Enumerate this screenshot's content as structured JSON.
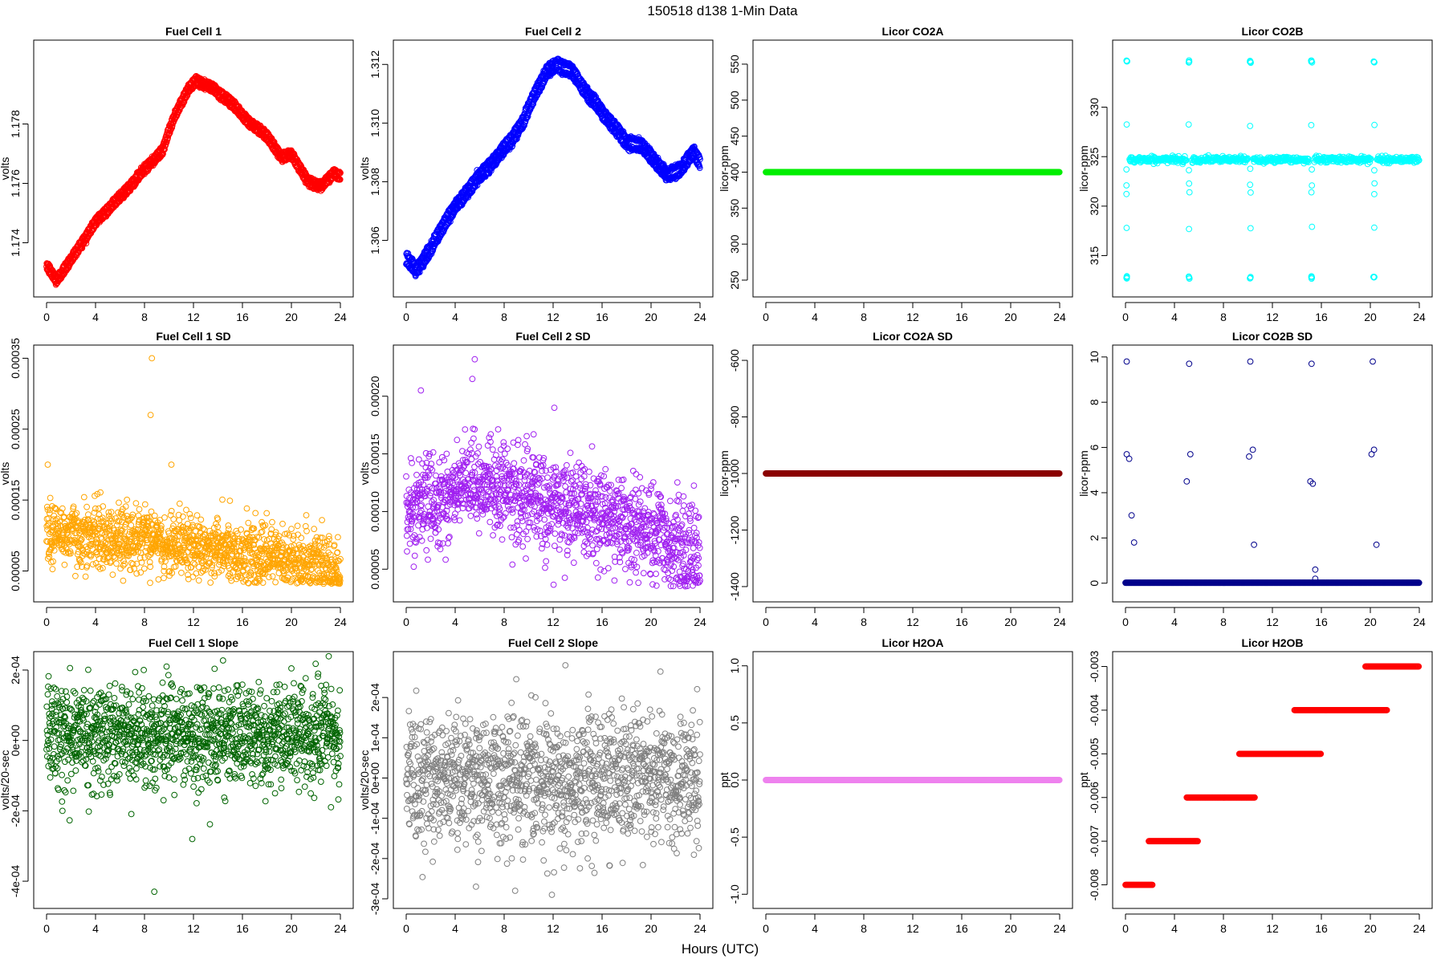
{
  "figure": {
    "title": "150518   d138   1-Min Data",
    "xlabel": "Hours (UTC)"
  },
  "chart_data": [
    {
      "type": "scatter",
      "title": "Fuel Cell 1",
      "xlabel": "",
      "ylabel": "volts",
      "color": "#ff0000",
      "xlim": [
        0,
        24
      ],
      "ylim": [
        1.1725,
        1.1805
      ],
      "xticks": [
        0,
        4,
        8,
        12,
        16,
        20,
        24
      ],
      "xtick_labels": [
        "0",
        "4",
        "8",
        "12",
        "16",
        "20",
        "24"
      ],
      "yticks": [
        1.174,
        1.176,
        1.178
      ],
      "ytick_labels": [
        "1.174",
        "1.176",
        "1.178"
      ],
      "gen": {
        "kind": "band",
        "n": 1440,
        "anchors": [
          [
            0,
            1.1731
          ],
          [
            0.8,
            1.1726
          ],
          [
            2,
            1.1733
          ],
          [
            3,
            1.174
          ],
          [
            4,
            1.1746
          ],
          [
            6,
            1.1754
          ],
          [
            8,
            1.1764
          ],
          [
            9.5,
            1.177
          ],
          [
            10.5,
            1.1782
          ],
          [
            11.5,
            1.179
          ],
          [
            12.2,
            1.1794
          ],
          [
            13.5,
            1.1791
          ],
          [
            15,
            1.1786
          ],
          [
            16.5,
            1.178
          ],
          [
            18,
            1.1775
          ],
          [
            19.2,
            1.1767
          ],
          [
            20,
            1.1769
          ],
          [
            21.3,
            1.176
          ],
          [
            22.5,
            1.1758
          ],
          [
            23.5,
            1.1762
          ],
          [
            24,
            1.1761
          ]
        ],
        "offset": 0.00022,
        "noise": 8e-05
      }
    },
    {
      "type": "scatter",
      "title": "Fuel Cell 2",
      "xlabel": "",
      "ylabel": "volts",
      "color": "#0000ff",
      "xlim": [
        0,
        24
      ],
      "ylim": [
        1.3044,
        1.3125
      ],
      "xticks": [
        0,
        4,
        8,
        12,
        16,
        20,
        24
      ],
      "xtick_labels": [
        "0",
        "4",
        "8",
        "12",
        "16",
        "20",
        "24"
      ],
      "yticks": [
        1.306,
        1.308,
        1.31,
        1.312
      ],
      "ytick_labels": [
        "1.306",
        "1.308",
        "1.310",
        "1.312"
      ],
      "gen": {
        "kind": "band",
        "n": 1440,
        "anchors": [
          [
            0,
            1.3052
          ],
          [
            0.8,
            1.3048
          ],
          [
            2,
            1.3055
          ],
          [
            3,
            1.3064
          ],
          [
            4,
            1.307
          ],
          [
            6,
            1.308
          ],
          [
            8,
            1.309
          ],
          [
            9.5,
            1.3098
          ],
          [
            10.5,
            1.3108
          ],
          [
            11.5,
            1.3116
          ],
          [
            12.3,
            1.3119
          ],
          [
            13.5,
            1.3116
          ],
          [
            15,
            1.3107
          ],
          [
            16.5,
            1.31
          ],
          [
            18,
            1.3092
          ],
          [
            19.3,
            1.309
          ],
          [
            20,
            1.3087
          ],
          [
            21.3,
            1.3081
          ],
          [
            22.5,
            1.3083
          ],
          [
            23.5,
            1.3088
          ],
          [
            24,
            1.3085
          ]
        ],
        "offset": 0.00032,
        "noise": 0.0001
      }
    },
    {
      "type": "scatter",
      "title": "Licor CO2A",
      "xlabel": "",
      "ylabel": "licor-ppm",
      "color": "#00ee00",
      "xlim": [
        0,
        24
      ],
      "ylim": [
        240,
        570
      ],
      "xticks": [
        0,
        4,
        8,
        12,
        16,
        20,
        24
      ],
      "xtick_labels": [
        "0",
        "4",
        "8",
        "12",
        "16",
        "20",
        "24"
      ],
      "yticks": [
        250,
        300,
        350,
        400,
        450,
        500,
        550
      ],
      "ytick_labels": [
        "250",
        "300",
        "350",
        "400",
        "450",
        "500",
        "550"
      ],
      "gen": {
        "kind": "const",
        "n": 1440,
        "value": 400
      }
    },
    {
      "type": "scatter",
      "title": "Licor CO2B",
      "xlabel": "",
      "ylabel": "licor-ppm",
      "color": "#00ffff",
      "xlim": [
        0,
        24
      ],
      "ylim": [
        311.8,
        335.8
      ],
      "xticks": [
        0,
        4,
        8,
        12,
        16,
        20,
        24
      ],
      "xtick_labels": [
        "0",
        "4",
        "8",
        "12",
        "16",
        "20",
        "24"
      ],
      "yticks": [
        315,
        320,
        325,
        330
      ],
      "ytick_labels": [
        "315",
        "320",
        "325",
        "330"
      ],
      "gen": {
        "kind": "co2b",
        "n": 1440,
        "base": 324.7,
        "noise": 0.15,
        "calibrations": [
          0.1,
          5.2,
          10.2,
          15.2,
          20.3
        ],
        "cal_values": [
          334.6,
          312.8,
          322.2,
          321.3,
          317.8,
          328.2,
          323.7
        ]
      }
    },
    {
      "type": "scatter",
      "title": "Fuel Cell 1 SD",
      "xlabel": "",
      "ylabel": "volts",
      "color": "#ffa500",
      "xlim": [
        0,
        24
      ],
      "ylim": [
        2e-05,
        0.000355
      ],
      "xticks": [
        0,
        4,
        8,
        12,
        16,
        20,
        24
      ],
      "xtick_labels": [
        "0",
        "4",
        "8",
        "12",
        "16",
        "20",
        "24"
      ],
      "yticks": [
        5e-05,
        0.00015,
        0.00025,
        0.00035
      ],
      "ytick_labels": [
        "0.00005",
        "0.00015",
        "0.00025",
        "0.00035"
      ],
      "gen": {
        "kind": "noise",
        "n": 1440,
        "anchors": [
          [
            0,
            0.000105
          ],
          [
            6,
            9.5e-05
          ],
          [
            12,
            8.5e-05
          ],
          [
            18,
            7e-05
          ],
          [
            24,
            5e-05
          ]
        ],
        "noise": 2.2e-05,
        "floor": 3.2e-05,
        "extras": [
          [
            8.6,
            0.00035
          ],
          [
            8.5,
            0.00027
          ],
          [
            10.2,
            0.0002
          ],
          [
            0.1,
            0.0002
          ]
        ]
      }
    },
    {
      "type": "scatter",
      "title": "Fuel Cell 2 SD",
      "xlabel": "",
      "ylabel": "volts",
      "color": "#a020f0",
      "xlim": [
        0,
        24
      ],
      "ylim": [
        3e-05,
        0.000236
      ],
      "xticks": [
        0,
        4,
        8,
        12,
        16,
        20,
        24
      ],
      "xtick_labels": [
        "0",
        "4",
        "8",
        "12",
        "16",
        "20",
        "24"
      ],
      "yticks": [
        5e-05,
        0.0001,
        0.00015,
        0.0002
      ],
      "ytick_labels": [
        "0.00005",
        "0.00010",
        "0.00015",
        "0.00020"
      ],
      "gen": {
        "kind": "noise",
        "n": 1440,
        "anchors": [
          [
            0,
            0.0001
          ],
          [
            6,
            0.000125
          ],
          [
            12,
            0.000105
          ],
          [
            18,
            9e-05
          ],
          [
            24,
            6e-05
          ]
        ],
        "noise": 2e-05,
        "floor": 3.5e-05,
        "extras": [
          [
            5.6,
            0.000232
          ],
          [
            5.4,
            0.000215
          ],
          [
            1.2,
            0.000205
          ],
          [
            12.1,
            0.00019
          ]
        ]
      }
    },
    {
      "type": "scatter",
      "title": "Licor CO2A SD",
      "xlabel": "",
      "ylabel": "licor-ppm",
      "color": "#8b0000",
      "xlim": [
        0,
        24
      ],
      "ylim": [
        -1420,
        -580
      ],
      "xticks": [
        0,
        4,
        8,
        12,
        16,
        20,
        24
      ],
      "xtick_labels": [
        "0",
        "4",
        "8",
        "12",
        "16",
        "20",
        "24"
      ],
      "yticks": [
        -1400,
        -1200,
        -1000,
        -800,
        -600
      ],
      "ytick_labels": [
        "-1400",
        "-1200",
        "-1000",
        "-800",
        "-600"
      ],
      "gen": {
        "kind": "const",
        "n": 1440,
        "value": -1000
      }
    },
    {
      "type": "scatter",
      "title": "Licor CO2B SD",
      "xlabel": "",
      "ylabel": "licor-ppm",
      "color": "#00008b",
      "xlim": [
        0,
        24
      ],
      "ylim": [
        -0.4,
        10.1
      ],
      "xticks": [
        0,
        4,
        8,
        12,
        16,
        20,
        24
      ],
      "xtick_labels": [
        "0",
        "4",
        "8",
        "12",
        "16",
        "20",
        "24"
      ],
      "yticks": [
        0,
        2,
        4,
        6,
        8,
        10
      ],
      "ytick_labels": [
        "0",
        "2",
        "4",
        "6",
        "8",
        "10"
      ],
      "gen": {
        "kind": "const",
        "n": 1440,
        "value": 0.02,
        "extras": [
          [
            0.1,
            9.8
          ],
          [
            0.1,
            5.7
          ],
          [
            0.3,
            5.5
          ],
          [
            0.5,
            3.0
          ],
          [
            0.7,
            1.8
          ],
          [
            5.2,
            9.7
          ],
          [
            5.3,
            5.7
          ],
          [
            5.0,
            4.5
          ],
          [
            10.2,
            9.8
          ],
          [
            10.1,
            5.6
          ],
          [
            10.4,
            5.9
          ],
          [
            10.5,
            1.7
          ],
          [
            15.2,
            9.7
          ],
          [
            15.1,
            4.5
          ],
          [
            15.3,
            4.4
          ],
          [
            15.5,
            0.6
          ],
          [
            15.5,
            0.2
          ],
          [
            20.2,
            9.8
          ],
          [
            20.1,
            5.7
          ],
          [
            20.3,
            5.9
          ],
          [
            20.5,
            1.7
          ]
        ]
      }
    },
    {
      "type": "scatter",
      "title": "Fuel Cell 1 Slope",
      "xlabel": "",
      "ylabel": "volts/20-sec",
      "color": "#006400",
      "xlim": [
        0,
        24
      ],
      "ylim": [
        -0.00045,
        0.000225
      ],
      "xticks": [
        0,
        4,
        8,
        12,
        16,
        20,
        24
      ],
      "xtick_labels": [
        "0",
        "4",
        "8",
        "12",
        "16",
        "20",
        "24"
      ],
      "yticks": [
        -0.0004,
        -0.0002,
        0,
        0.0002
      ],
      "ytick_labels": [
        "-4e-04",
        "-2e-04",
        "0e+00",
        "2e-04"
      ],
      "gen": {
        "kind": "noise",
        "n": 1440,
        "anchors": [
          [
            0,
            2e-05
          ],
          [
            24,
            1e-05
          ]
        ],
        "noise": 7e-05,
        "floor": -0.0003,
        "extras": [
          [
            8.8,
            -0.00043
          ],
          [
            11.9,
            -0.00028
          ],
          [
            1.3,
            -0.0002
          ],
          [
            9.8,
            0.00021
          ]
        ]
      }
    },
    {
      "type": "scatter",
      "title": "Fuel Cell 2 Slope",
      "xlabel": "",
      "ylabel": "volts/20-sec",
      "color": "#808080",
      "xlim": [
        0,
        24
      ],
      "ylim": [
        -0.0003,
        0.00029
      ],
      "xticks": [
        0,
        4,
        8,
        12,
        16,
        20,
        24
      ],
      "xtick_labels": [
        "0",
        "4",
        "8",
        "12",
        "16",
        "20",
        "24"
      ],
      "yticks": [
        -0.0003,
        -0.0002,
        -0.0001,
        0,
        0.0001,
        0.0002
      ],
      "ytick_labels": [
        "-3e-04",
        "-2e-04",
        "-1e-04",
        "0e+00",
        "1e-04",
        "2e-04"
      ],
      "gen": {
        "kind": "noise",
        "n": 1440,
        "anchors": [
          [
            0,
            0
          ],
          [
            24,
            0
          ]
        ],
        "noise": 8e-05,
        "floor": -0.00029,
        "extras": [
          [
            11.9,
            -0.00029
          ],
          [
            8.9,
            -0.00028
          ],
          [
            5.7,
            -0.00027
          ],
          [
            13.0,
            0.00028
          ]
        ]
      }
    },
    {
      "type": "scatter",
      "title": "Licor H2OA",
      "xlabel": "",
      "ylabel": "ppt",
      "color": "#ee82ee",
      "xlim": [
        0,
        24
      ],
      "ylim": [
        -1.04,
        1.04
      ],
      "xticks": [
        0,
        4,
        8,
        12,
        16,
        20,
        24
      ],
      "xtick_labels": [
        "0",
        "4",
        "8",
        "12",
        "16",
        "20",
        "24"
      ],
      "yticks": [
        -1,
        -0.5,
        0,
        0.5,
        1
      ],
      "ytick_labels": [
        "-1.0",
        "-0.5",
        "0.0",
        "0.5",
        "1.0"
      ],
      "gen": {
        "kind": "const",
        "n": 1440,
        "value": 0
      }
    },
    {
      "type": "scatter",
      "title": "Licor H2OB",
      "xlabel": "",
      "ylabel": "ppt",
      "color": "#ff0000",
      "xlim": [
        0,
        24
      ],
      "ylim": [
        -0.00832,
        -0.00288
      ],
      "xticks": [
        0,
        4,
        8,
        12,
        16,
        20,
        24
      ],
      "xtick_labels": [
        "0",
        "4",
        "8",
        "12",
        "16",
        "20",
        "24"
      ],
      "yticks": [
        -0.008,
        -0.007,
        -0.006,
        -0.005,
        -0.004,
        -0.003
      ],
      "ytick_labels": [
        "-0.008",
        "-0.007",
        "-0.006",
        "-0.005",
        "-0.004",
        "-0.003"
      ],
      "gen": {
        "kind": "steps",
        "n": 1440,
        "steps": [
          [
            0,
            2.2,
            -0.008
          ],
          [
            1.9,
            5.9,
            -0.007
          ],
          [
            5.0,
            10.6,
            -0.006
          ],
          [
            9.3,
            16.0,
            -0.005
          ],
          [
            13.8,
            21.4,
            -0.004
          ],
          [
            19.6,
            24,
            -0.003
          ]
        ]
      }
    }
  ]
}
